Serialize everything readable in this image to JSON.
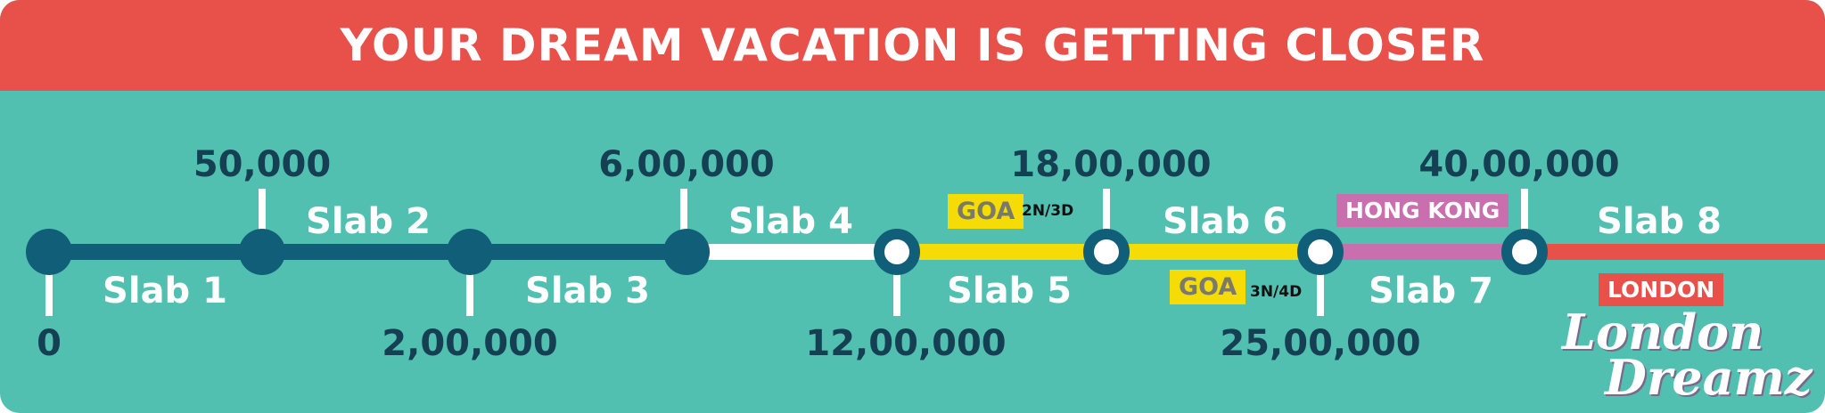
{
  "header": {
    "title": "YOUR DREAM VACATION IS GETTING CLOSER"
  },
  "milestones": {
    "m0": "0",
    "m1": "50,000",
    "m2": "2,00,000",
    "m3": "6,00,000",
    "m4": "12,00,000",
    "m5": "18,00,000",
    "m6": "25,00,000",
    "m7": "40,00,000"
  },
  "slabs": [
    "Slab 1",
    "Slab 2",
    "Slab 3",
    "Slab 4",
    "Slab 5",
    "Slab 6",
    "Slab 7",
    "Slab 8"
  ],
  "rewards": {
    "goa_a": {
      "label": "GOA",
      "duration": "2N/3D"
    },
    "goa_b": {
      "label": "GOA",
      "duration": "3N/4D"
    },
    "hong_kong": {
      "label": "HONG KONG"
    },
    "london": {
      "label": "LONDON"
    }
  },
  "logo": {
    "line1": "London",
    "line2": "Dreamz"
  },
  "colors": {
    "header": "#e8504a",
    "background": "#52c0b0",
    "track_dark": "#115e78",
    "track_white": "#ffffff",
    "track_yellow": "#f6dc06",
    "track_pink": "#c96fae",
    "track_red": "#e8504a",
    "amount_text": "#153f52"
  }
}
